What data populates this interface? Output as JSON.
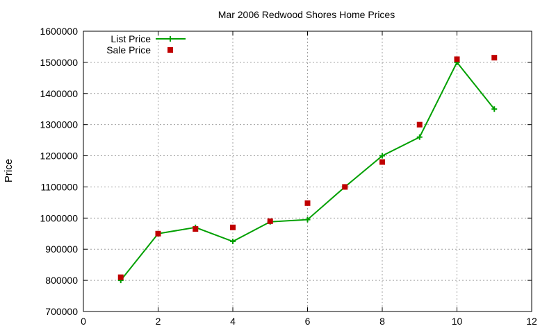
{
  "chart_data": {
    "type": "line",
    "title": "Mar 2006 Redwood Shores Home Prices",
    "xlabel": "",
    "ylabel": "Price",
    "xlim": [
      0,
      12
    ],
    "ylim": [
      700000,
      1600000
    ],
    "x_ticks": [
      0,
      2,
      4,
      6,
      8,
      10,
      12
    ],
    "y_ticks": [
      700000,
      800000,
      900000,
      1000000,
      1100000,
      1200000,
      1300000,
      1400000,
      1500000,
      1600000
    ],
    "grid": true,
    "legend_position": "top-left",
    "series": [
      {
        "name": "List Price",
        "style": "line-plus",
        "color": "#00a000",
        "x": [
          1,
          2,
          3,
          4,
          5,
          6,
          7,
          8,
          9,
          10,
          11
        ],
        "y": [
          800000,
          950000,
          970000,
          925000,
          988000,
          995000,
          1100000,
          1200000,
          1260000,
          1500000,
          1350000
        ]
      },
      {
        "name": "Sale Price",
        "style": "square-points",
        "color": "#c00000",
        "x": [
          1,
          2,
          3,
          4,
          5,
          6,
          7,
          8,
          9,
          10,
          11
        ],
        "y": [
          810000,
          950000,
          965000,
          970000,
          990000,
          1048000,
          1100000,
          1180000,
          1300000,
          1510000,
          1515000
        ]
      }
    ]
  }
}
